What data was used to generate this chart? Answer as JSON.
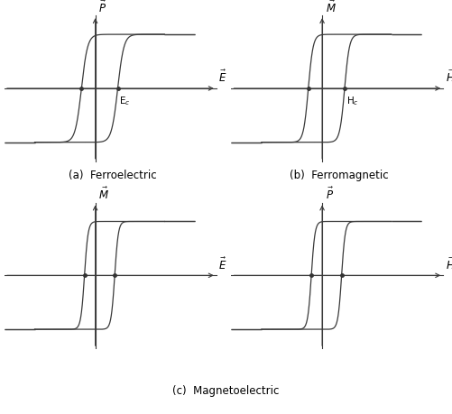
{
  "background_color": "#ffffff",
  "line_color": "#3a3a3a",
  "axis_color": "#3a3a3a",
  "dot_color": "#333333",
  "subplots": [
    {
      "ylabel": "$\\vec{P}$",
      "xlabel": "$\\vec{E}$",
      "label": "(a)  Ferroelectric",
      "coercive_label": "E$_c$",
      "show_coercive": true,
      "loop_shift": 0.42,
      "steep": 7.0,
      "y_axis_pos": -0.1
    },
    {
      "ylabel": "$\\vec{M}$",
      "xlabel": "$\\vec{H}$",
      "label": "(b)  Ferromagnetic",
      "coercive_label": "H$_c$",
      "show_coercive": true,
      "loop_shift": 0.42,
      "steep": 9.0,
      "y_axis_pos": -0.1
    },
    {
      "ylabel": "$\\vec{M}$",
      "xlabel": "$\\vec{E}$",
      "label": "",
      "coercive_label": "",
      "show_coercive": false,
      "loop_shift": 0.35,
      "steep": 12.0,
      "y_axis_pos": -0.1
    },
    {
      "ylabel": "$\\vec{P}$",
      "xlabel": "$\\vec{H}$",
      "label": "",
      "coercive_label": "",
      "show_coercive": false,
      "loop_shift": 0.35,
      "steep": 12.0,
      "y_axis_pos": -0.1
    }
  ],
  "bottom_label": "(c)  Magnetoelectric",
  "xlim": [
    -2.2,
    2.8
  ],
  "ylim": [
    -1.45,
    1.5
  ],
  "x_tail_start": -2.2,
  "x_tail_end": 2.2,
  "x_axis_end": 2.7,
  "y_axis_end": 1.35,
  "y_axis_start": -1.35
}
